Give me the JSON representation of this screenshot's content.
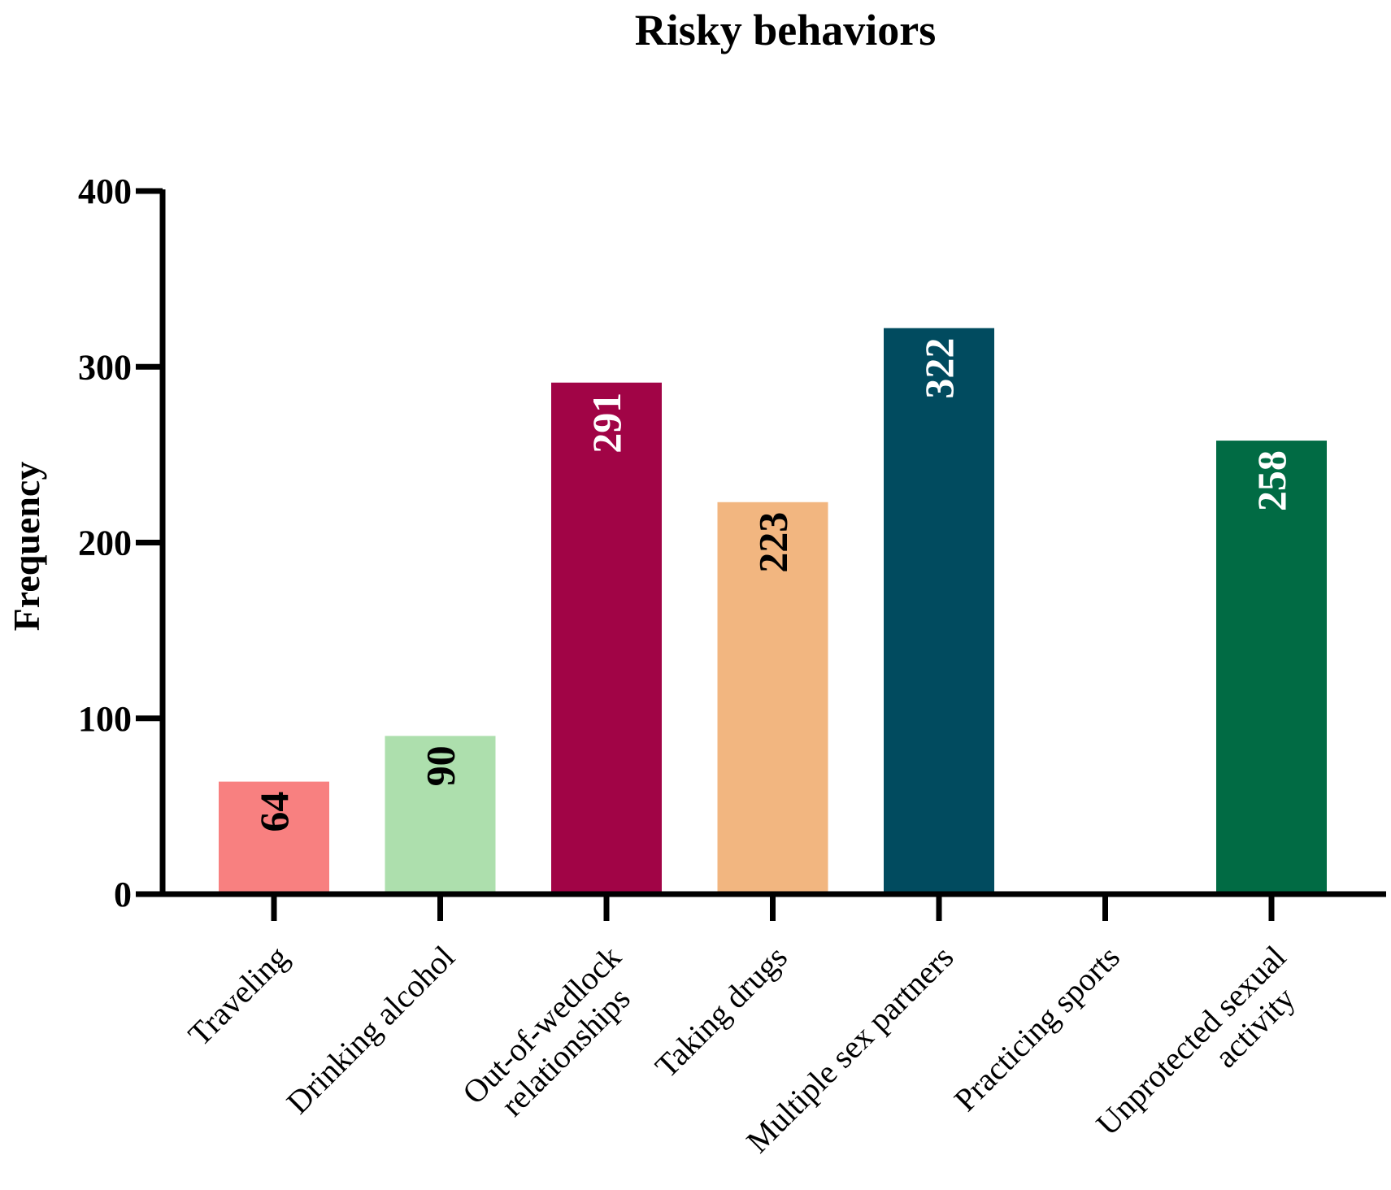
{
  "chart_data": {
    "type": "bar",
    "title": "Risky behaviors",
    "xlabel": "",
    "ylabel": "Frequency",
    "ylim": [
      0,
      400
    ],
    "yticks": [
      0,
      100,
      200,
      300,
      400
    ],
    "grid": false,
    "legend": "none",
    "categories": [
      [
        "Traveling"
      ],
      [
        "Drinking alcohol"
      ],
      [
        "Out-of-wedlock",
        "relationships"
      ],
      [
        "Taking drugs"
      ],
      [
        "Multiple sex partners"
      ],
      [
        "Practicing sports"
      ],
      [
        "Unprotected sexual",
        "activity"
      ]
    ],
    "values": [
      64,
      90,
      291,
      223,
      322,
      0,
      258
    ],
    "data_labels": [
      "64",
      "90",
      "291",
      "223",
      "322",
      "",
      "258"
    ],
    "colors": [
      "#F88080",
      "#ADDFAD",
      "#A10446",
      "#F2B680",
      "#014B5F",
      "#888888",
      "#016B44"
    ],
    "label_colors": [
      "#000000",
      "#000000",
      "#ffffff",
      "#000000",
      "#ffffff",
      "#000000",
      "#ffffff"
    ]
  }
}
